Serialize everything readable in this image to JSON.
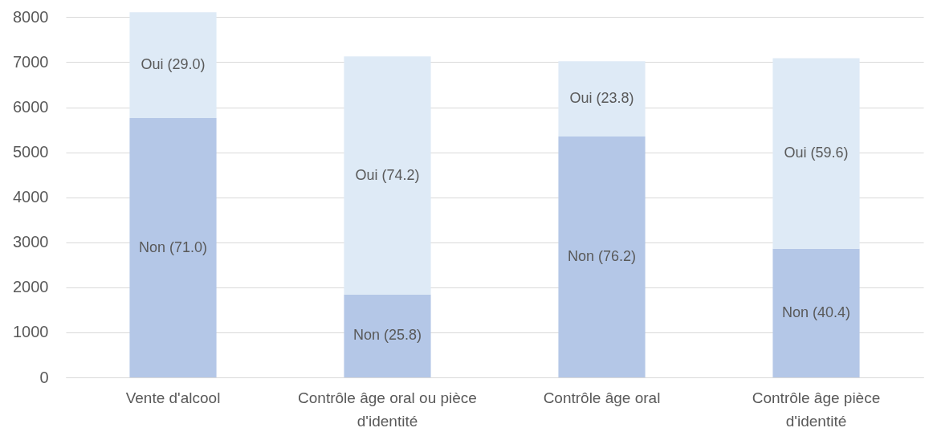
{
  "chart_data": {
    "type": "bar",
    "stacked": true,
    "categories": [
      "Vente d'alcool",
      "Contrôle âge oral ou pièce d'identité",
      "Contrôle âge oral",
      "Contrôle âge pièce d'identité"
    ],
    "series": [
      {
        "color": "#b4c7e7",
        "values": [
          5760,
          1840,
          5350,
          2860
        ]
      },
      {
        "color": "#deeaf6",
        "values": [
          2350,
          5290,
          1670,
          4230
        ]
      }
    ],
    "annotations": [
      "Non (71.0)",
      "Oui (29.0)",
      "Non (25.8)",
      "Oui (74.2)",
      "Non (76.2)",
      "Oui (23.8)",
      "Non (40.4)",
      "Oui (59.6)"
    ],
    "ylim": [
      0,
      8150
    ],
    "yticks": [
      0,
      1000,
      2000,
      3000,
      4000,
      5000,
      6000,
      7000,
      8000
    ],
    "grid": "y"
  }
}
